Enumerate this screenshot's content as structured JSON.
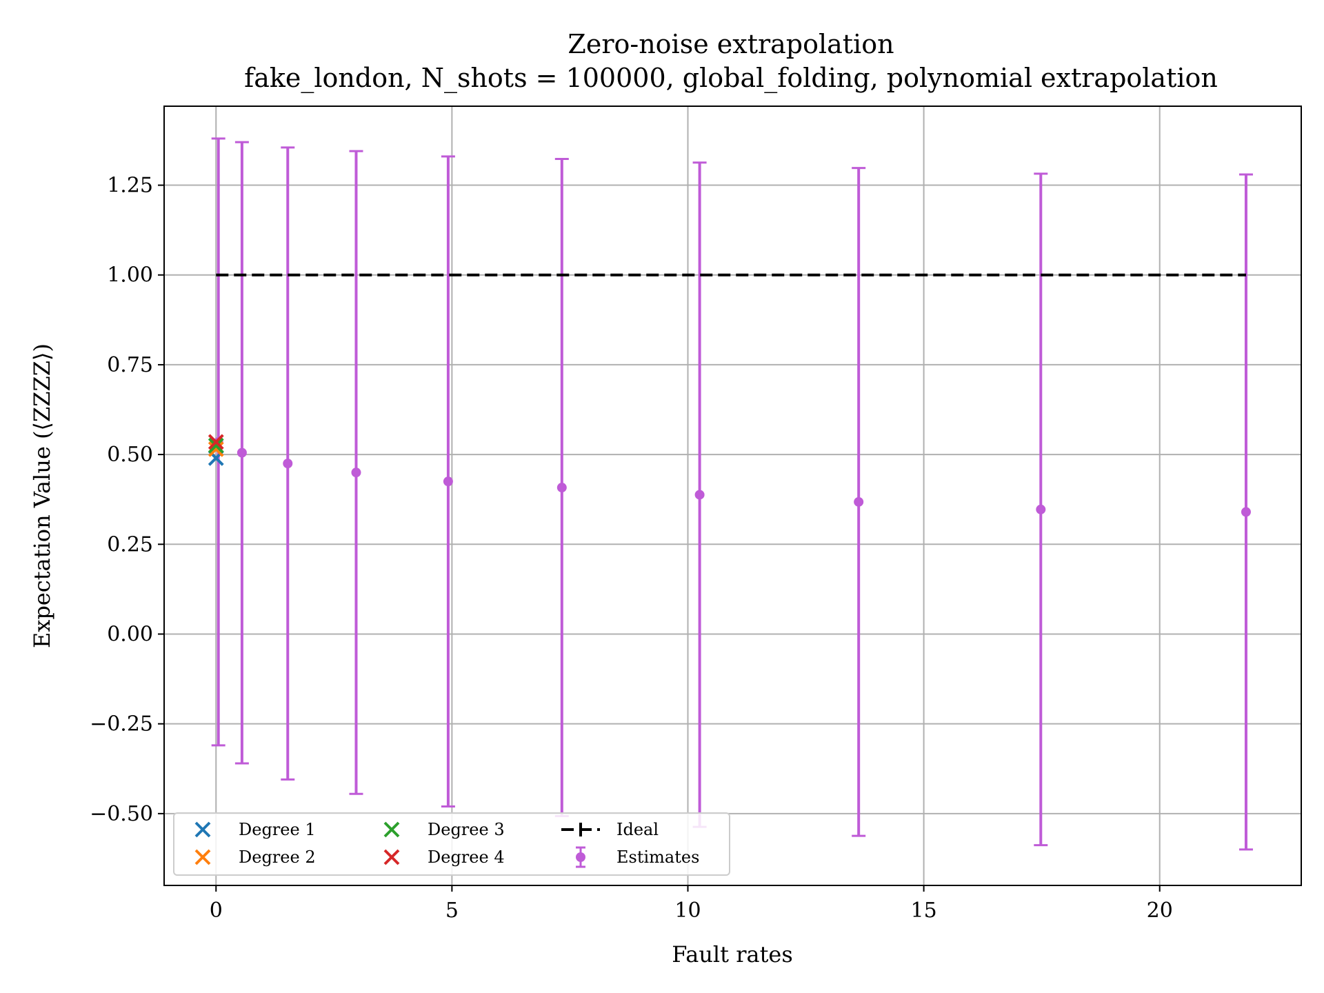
{
  "chart_data": {
    "type": "scatter",
    "title": "Zero-noise extrapolation",
    "subtitle": "fake_london, N_shots = 100000, global_folding, polynomial extrapolation",
    "xlabel": "Fault rates",
    "ylabel": "Expectation Value (⟨ZZZZ⟩)",
    "xlim": [
      -1.1,
      23.0
    ],
    "ylim": [
      -0.7,
      1.47
    ],
    "xticks": [
      0,
      5,
      10,
      15,
      20
    ],
    "xtick_labels": [
      "0",
      "5",
      "10",
      "15",
      "20"
    ],
    "yticks": [
      -0.5,
      -0.25,
      0.0,
      0.25,
      0.5,
      0.75,
      1.0,
      1.25
    ],
    "ytick_labels": [
      "−0.50",
      "−0.25",
      "0.00",
      "0.25",
      "0.50",
      "0.75",
      "1.00",
      "1.25"
    ],
    "grid": true,
    "legend_position": "lower-left",
    "series": [
      {
        "name": "Estimates",
        "kind": "errorbar",
        "color": "#bf5bd7",
        "x": [
          0.05,
          0.55,
          1.52,
          2.97,
          4.92,
          7.33,
          10.25,
          13.62,
          17.48,
          21.83
        ],
        "y": [
          0.535,
          0.505,
          0.475,
          0.45,
          0.425,
          0.408,
          0.388,
          0.368,
          0.347,
          0.34
        ],
        "yerr": [
          0.845,
          0.865,
          0.88,
          0.895,
          0.905,
          0.915,
          0.925,
          0.93,
          0.935,
          0.94
        ]
      },
      {
        "name": "Ideal",
        "kind": "dashed-line",
        "color": "#000000",
        "x": [
          0.0,
          21.83
        ],
        "y": [
          1.0,
          1.0
        ]
      },
      {
        "name": "Degree 1",
        "kind": "x-marker",
        "color": "#1f77b4",
        "x": [
          0.0
        ],
        "y": [
          0.49
        ]
      },
      {
        "name": "Degree 2",
        "kind": "x-marker",
        "color": "#ff7f0e",
        "x": [
          0.0
        ],
        "y": [
          0.515
        ]
      },
      {
        "name": "Degree 3",
        "kind": "x-marker",
        "color": "#2ca02c",
        "x": [
          0.0
        ],
        "y": [
          0.525
        ]
      },
      {
        "name": "Degree 4",
        "kind": "x-marker",
        "color": "#d62728",
        "x": [
          0.0
        ],
        "y": [
          0.535
        ]
      }
    ],
    "legend": {
      "columns": [
        [
          "Degree 1",
          "Degree 2"
        ],
        [
          "Degree 3",
          "Degree 4"
        ],
        [
          "Ideal",
          "Estimates"
        ]
      ]
    }
  }
}
